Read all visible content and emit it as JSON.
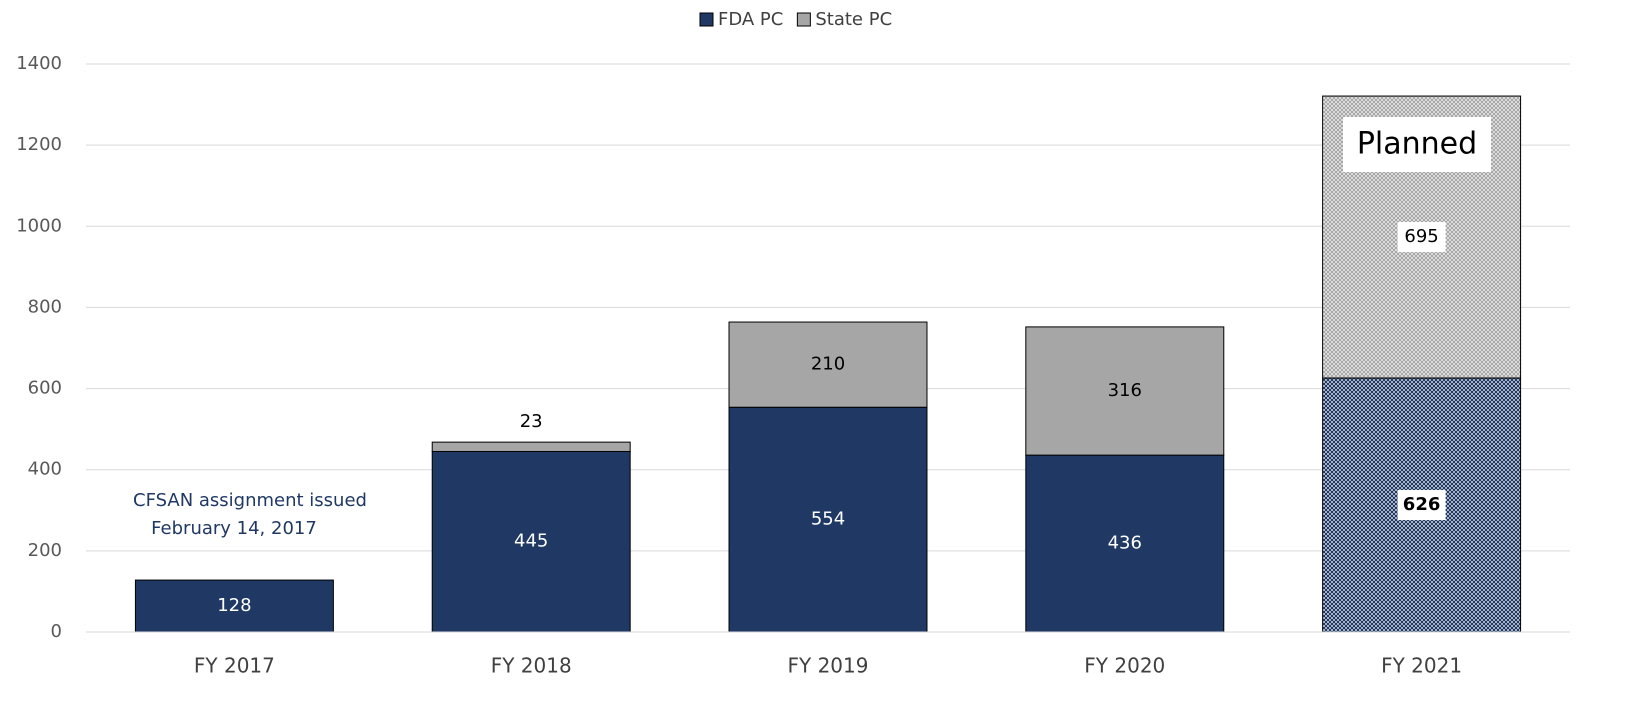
{
  "chart_data": {
    "type": "stacked_bar",
    "categories": [
      "FY 2017",
      "FY 2018",
      "FY 2019",
      "FY 2020",
      "FY 2021"
    ],
    "series": [
      {
        "name": "FDA PC",
        "color": "#1f3864",
        "label_color": "#ffffff",
        "values": [
          128,
          445,
          554,
          436,
          626
        ]
      },
      {
        "name": "State PC",
        "color": "#a6a6a6",
        "label_color": "#000000",
        "values": [
          null,
          23,
          210,
          316,
          695
        ]
      }
    ],
    "patterned": [
      false,
      false,
      false,
      false,
      true
    ],
    "ylim": [
      0,
      1400
    ],
    "yticks": [
      0,
      200,
      400,
      600,
      800,
      1000,
      1200,
      1400
    ],
    "grid": true,
    "legend": "top",
    "annotations": [
      [
        "CFSAN assignment issued",
        "February 14, 2017"
      ],
      "Planned"
    ]
  }
}
